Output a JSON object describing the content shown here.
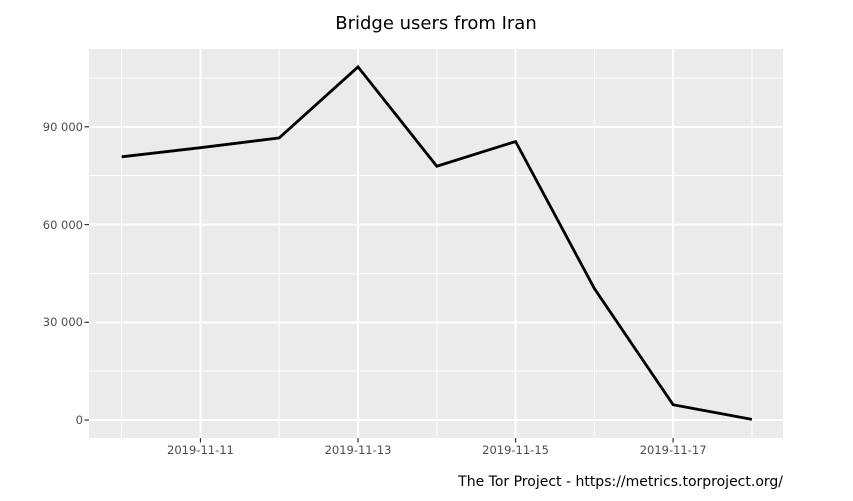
{
  "title": "Bridge users from Iran",
  "footer": "The Tor Project - https://metrics.torproject.org/",
  "colors": {
    "page_bg": "#ffffff",
    "plot_bg": "#ebebeb",
    "grid": "#ffffff",
    "axis_text": "#4d4d4d",
    "tick_mark": "#333333",
    "line": "#000000",
    "title_text": "#000000",
    "footer_text": "#000000"
  },
  "chart_data": {
    "type": "line",
    "title": "Bridge users from Iran",
    "x": [
      "2019-11-10",
      "2019-11-11",
      "2019-11-12",
      "2019-11-13",
      "2019-11-14",
      "2019-11-15",
      "2019-11-16",
      "2019-11-17",
      "2019-11-18"
    ],
    "values": [
      80800,
      83600,
      86600,
      108400,
      77900,
      85500,
      40400,
      4700,
      200
    ],
    "xlabel": "",
    "ylabel": "",
    "x_tick_labels": [
      "2019-11-11",
      "2019-11-13",
      "2019-11-15",
      "2019-11-17"
    ],
    "x_major_ticks_idx": [
      1,
      3,
      5,
      7
    ],
    "x_minor_ticks_idx": [
      0,
      2,
      4,
      6,
      8
    ],
    "y_tick_labels": [
      "0",
      "30 000",
      "60 000",
      "90 000"
    ],
    "y_major_ticks": [
      0,
      30000,
      60000,
      90000
    ],
    "y_minor_ticks": [
      15000,
      45000,
      75000,
      105000
    ],
    "xlim_idx": [
      -0.415,
      8.395
    ],
    "ylim": [
      -5510,
      113880
    ],
    "grid": true,
    "legend": false,
    "line_width": 2.8
  }
}
